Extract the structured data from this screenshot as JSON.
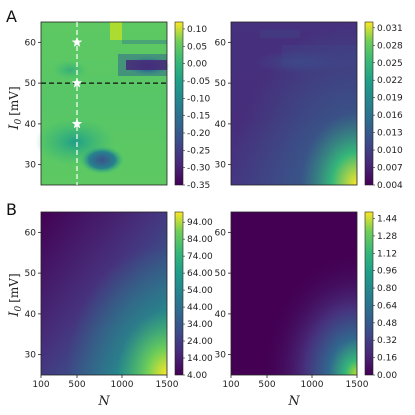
{
  "chart_data": [
    {
      "type": "heatmap",
      "panel_label": "A",
      "title": "",
      "xlabel": "",
      "ylabel": "I_0 [mV]",
      "ylabel_main": "I",
      "ylabel_sub": "0",
      "ylabel_unit": "[mV]",
      "yticks": [
        "30",
        "40",
        "50",
        "60"
      ],
      "xticks": [],
      "xlim": [
        100,
        1500
      ],
      "ylim": [
        25,
        65
      ],
      "colorbar_ticks": [
        "0.10",
        "0.05",
        "0.00",
        "-0.05",
        "-0.10",
        "-0.15",
        "-0.20",
        "-0.25",
        "-0.30",
        "-0.35"
      ],
      "colorbar_range": [
        -0.35,
        0.12
      ],
      "cmap": "viridis",
      "dashed_lines": {
        "vertical_x": 500,
        "horizontal_y": 50
      },
      "star_points": [
        [
          500,
          60
        ],
        [
          500,
          50
        ],
        [
          500,
          40
        ]
      ],
      "grid": false
    },
    {
      "type": "heatmap",
      "panel_label": "",
      "title": "",
      "xlabel": "",
      "ylabel": "",
      "yticks": [
        "30",
        "40",
        "50",
        "60"
      ],
      "xticks": [],
      "xlim": [
        100,
        1500
      ],
      "ylim": [
        25,
        65
      ],
      "colorbar_ticks": [
        "0.031",
        "0.028",
        "0.025",
        "0.022",
        "0.019",
        "0.016",
        "0.013",
        "0.010",
        "0.007",
        "0.004"
      ],
      "colorbar_range": [
        0.004,
        0.032
      ],
      "cmap": "viridis",
      "grid": false
    },
    {
      "type": "heatmap",
      "panel_label": "B",
      "title": "",
      "xlabel": "N",
      "ylabel": "I_0 [mV]",
      "ylabel_main": "I",
      "ylabel_sub": "0",
      "ylabel_unit": "[mV]",
      "yticks": [
        "30",
        "40",
        "50",
        "60"
      ],
      "xticks": [
        "100",
        "500",
        "1000",
        "1500"
      ],
      "xlim": [
        100,
        1500
      ],
      "ylim": [
        25,
        65
      ],
      "colorbar_ticks": [
        "94.00",
        "84.00",
        "74.00",
        "64.00",
        "54.00",
        "44.00",
        "34.00",
        "24.00",
        "14.00",
        "4.00"
      ],
      "colorbar_range": [
        4,
        100
      ],
      "cmap": "viridis",
      "grid": false
    },
    {
      "type": "heatmap",
      "panel_label": "",
      "title": "",
      "xlabel": "N",
      "ylabel": "",
      "yticks": [
        "30",
        "40",
        "50",
        "60"
      ],
      "xticks": [
        "100",
        "500",
        "1000",
        "1500"
      ],
      "xlim": [
        100,
        1500
      ],
      "ylim": [
        25,
        65
      ],
      "colorbar_ticks": [
        "1.44",
        "1.28",
        "1.12",
        "0.96",
        "0.80",
        "0.64",
        "0.48",
        "0.32",
        "0.16",
        "0.00"
      ],
      "colorbar_range": [
        0,
        1.5
      ],
      "cmap": "viridis",
      "grid": false
    }
  ]
}
